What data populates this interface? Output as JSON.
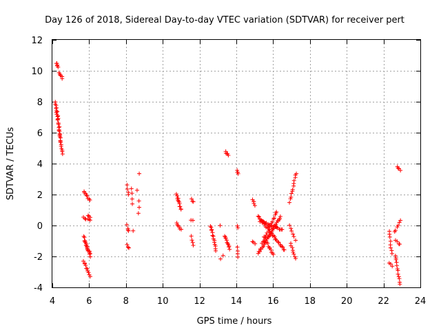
{
  "chart_data": {
    "type": "scatter",
    "title": "Day 126 of 2018, Sidereal Day-to-day VTEC variation (SDTVAR) for receiver pert",
    "xlabel": "GPS time / hours",
    "ylabel": "SDTVAR / TECUs",
    "xlim": [
      4,
      24
    ],
    "ylim": [
      -4,
      12
    ],
    "xticks": [
      4,
      6,
      8,
      10,
      12,
      14,
      16,
      18,
      20,
      22,
      24
    ],
    "yticks": [
      -4,
      -2,
      0,
      2,
      4,
      6,
      8,
      10,
      12
    ],
    "xtick_labels": [
      "4",
      "6",
      "8",
      "10",
      "12",
      "14",
      "16",
      "18",
      "20",
      "22",
      "24"
    ],
    "ytick_labels": [
      "-4",
      "-2",
      "0",
      "2",
      "4",
      "6",
      "8",
      "10",
      "12"
    ],
    "grid": true,
    "marker": "+",
    "marker_color": "#ff0000",
    "segments": [
      {
        "x0": 4.22,
        "y0": 10.5,
        "x1": 4.3,
        "y1": 10.2,
        "n": 5
      },
      {
        "x0": 4.35,
        "y0": 9.9,
        "x1": 4.55,
        "y1": 9.5,
        "n": 6
      },
      {
        "x0": 4.15,
        "y0": 8.0,
        "x1": 4.55,
        "y1": 4.6,
        "n": 26
      },
      {
        "x0": 4.25,
        "y0": 7.6,
        "x1": 4.45,
        "y1": 5.4,
        "n": 10
      },
      {
        "x0": 5.7,
        "y0": 2.2,
        "x1": 6.05,
        "y1": 1.6,
        "n": 8
      },
      {
        "x0": 5.7,
        "y0": 0.5,
        "x1": 6.05,
        "y1": 0.3,
        "n": 6
      },
      {
        "x0": 5.95,
        "y0": 0.7,
        "x1": 6.05,
        "y1": 0.5,
        "n": 3
      },
      {
        "x0": 5.7,
        "y0": -0.7,
        "x1": 6.05,
        "y1": -2.0,
        "n": 12
      },
      {
        "x0": 5.75,
        "y0": -1.0,
        "x1": 6.05,
        "y1": -1.8,
        "n": 8
      },
      {
        "x0": 5.7,
        "y0": -2.3,
        "x1": 6.05,
        "y1": -3.3,
        "n": 10
      },
      {
        "x0": 8.05,
        "y0": 2.6,
        "x1": 8.15,
        "y1": 2.0,
        "n": 4
      },
      {
        "x0": 8.3,
        "y0": 2.4,
        "x1": 8.35,
        "y1": 1.4,
        "n": 4
      },
      {
        "x0": 8.6,
        "y0": 2.3,
        "x1": 8.6,
        "y1": 2.3,
        "n": 1
      },
      {
        "x0": 8.7,
        "y0": 3.3,
        "x1": 8.7,
        "y1": 3.3,
        "n": 1
      },
      {
        "x0": 8.7,
        "y0": 1.6,
        "x1": 8.7,
        "y1": 0.8,
        "n": 3
      },
      {
        "x0": 8.05,
        "y0": 0.0,
        "x1": 8.15,
        "y1": -0.4,
        "n": 4
      },
      {
        "x0": 8.4,
        "y0": -0.4,
        "x1": 8.4,
        "y1": -0.4,
        "n": 1
      },
      {
        "x0": 8.05,
        "y0": -1.3,
        "x1": 8.15,
        "y1": -1.5,
        "n": 3
      },
      {
        "x0": 10.75,
        "y0": 2.0,
        "x1": 11.0,
        "y1": 1.0,
        "n": 12
      },
      {
        "x0": 11.55,
        "y0": 1.7,
        "x1": 11.65,
        "y1": 1.5,
        "n": 3
      },
      {
        "x0": 10.75,
        "y0": 0.2,
        "x1": 11.0,
        "y1": -0.3,
        "n": 6
      },
      {
        "x0": 11.55,
        "y0": 0.4,
        "x1": 11.65,
        "y1": 0.3,
        "n": 2
      },
      {
        "x0": 11.55,
        "y0": -0.7,
        "x1": 11.65,
        "y1": -1.3,
        "n": 4
      },
      {
        "x0": 12.6,
        "y0": 0.0,
        "x1": 12.9,
        "y1": -1.6,
        "n": 14
      },
      {
        "x0": 13.1,
        "y0": 0.0,
        "x1": 13.1,
        "y1": 0.0,
        "n": 1
      },
      {
        "x0": 13.15,
        "y0": -2.1,
        "x1": 13.3,
        "y1": -2.0,
        "n": 2
      },
      {
        "x0": 13.35,
        "y0": -0.7,
        "x1": 13.65,
        "y1": -1.5,
        "n": 10
      },
      {
        "x0": 13.4,
        "y0": 4.8,
        "x1": 13.55,
        "y1": 4.5,
        "n": 5
      },
      {
        "x0": 14.05,
        "y0": 3.6,
        "x1": 14.1,
        "y1": 3.3,
        "n": 4
      },
      {
        "x0": 14.05,
        "y0": 0.0,
        "x1": 14.1,
        "y1": -0.1,
        "n": 2
      },
      {
        "x0": 14.05,
        "y0": -1.4,
        "x1": 14.1,
        "y1": -2.0,
        "n": 4
      },
      {
        "x0": 14.9,
        "y0": 1.7,
        "x1": 15.0,
        "y1": 1.3,
        "n": 5
      },
      {
        "x0": 14.9,
        "y0": -1.0,
        "x1": 15.0,
        "y1": -1.2,
        "n": 3
      },
      {
        "x0": 15.2,
        "y0": 0.6,
        "x1": 16.6,
        "y1": -1.6,
        "n": 30
      },
      {
        "x0": 15.2,
        "y0": -1.8,
        "x1": 16.4,
        "y1": 0.6,
        "n": 30
      },
      {
        "x0": 15.3,
        "y0": 0.3,
        "x1": 16.5,
        "y1": -0.3,
        "n": 22
      },
      {
        "x0": 15.4,
        "y0": -1.2,
        "x1": 16.2,
        "y1": 0.9,
        "n": 18
      },
      {
        "x0": 15.5,
        "y0": -0.8,
        "x1": 16.0,
        "y1": -1.9,
        "n": 12
      },
      {
        "x0": 16.9,
        "y0": 1.5,
        "x1": 17.25,
        "y1": 3.4,
        "n": 12
      },
      {
        "x0": 16.9,
        "y0": 0.0,
        "x1": 17.2,
        "y1": -0.9,
        "n": 6
      },
      {
        "x0": 16.95,
        "y0": -1.2,
        "x1": 17.2,
        "y1": -2.1,
        "n": 8
      },
      {
        "x0": 22.3,
        "y0": -0.4,
        "x1": 22.45,
        "y1": -1.8,
        "n": 8
      },
      {
        "x0": 22.3,
        "y0": -2.4,
        "x1": 22.45,
        "y1": -2.6,
        "n": 3
      },
      {
        "x0": 22.6,
        "y0": -0.4,
        "x1": 22.9,
        "y1": 0.3,
        "n": 6
      },
      {
        "x0": 22.65,
        "y0": -1.0,
        "x1": 22.9,
        "y1": -1.2,
        "n": 4
      },
      {
        "x0": 22.65,
        "y0": -1.9,
        "x1": 22.9,
        "y1": -3.8,
        "n": 12
      },
      {
        "x0": 22.75,
        "y0": 3.8,
        "x1": 22.9,
        "y1": 3.6,
        "n": 4
      }
    ]
  }
}
